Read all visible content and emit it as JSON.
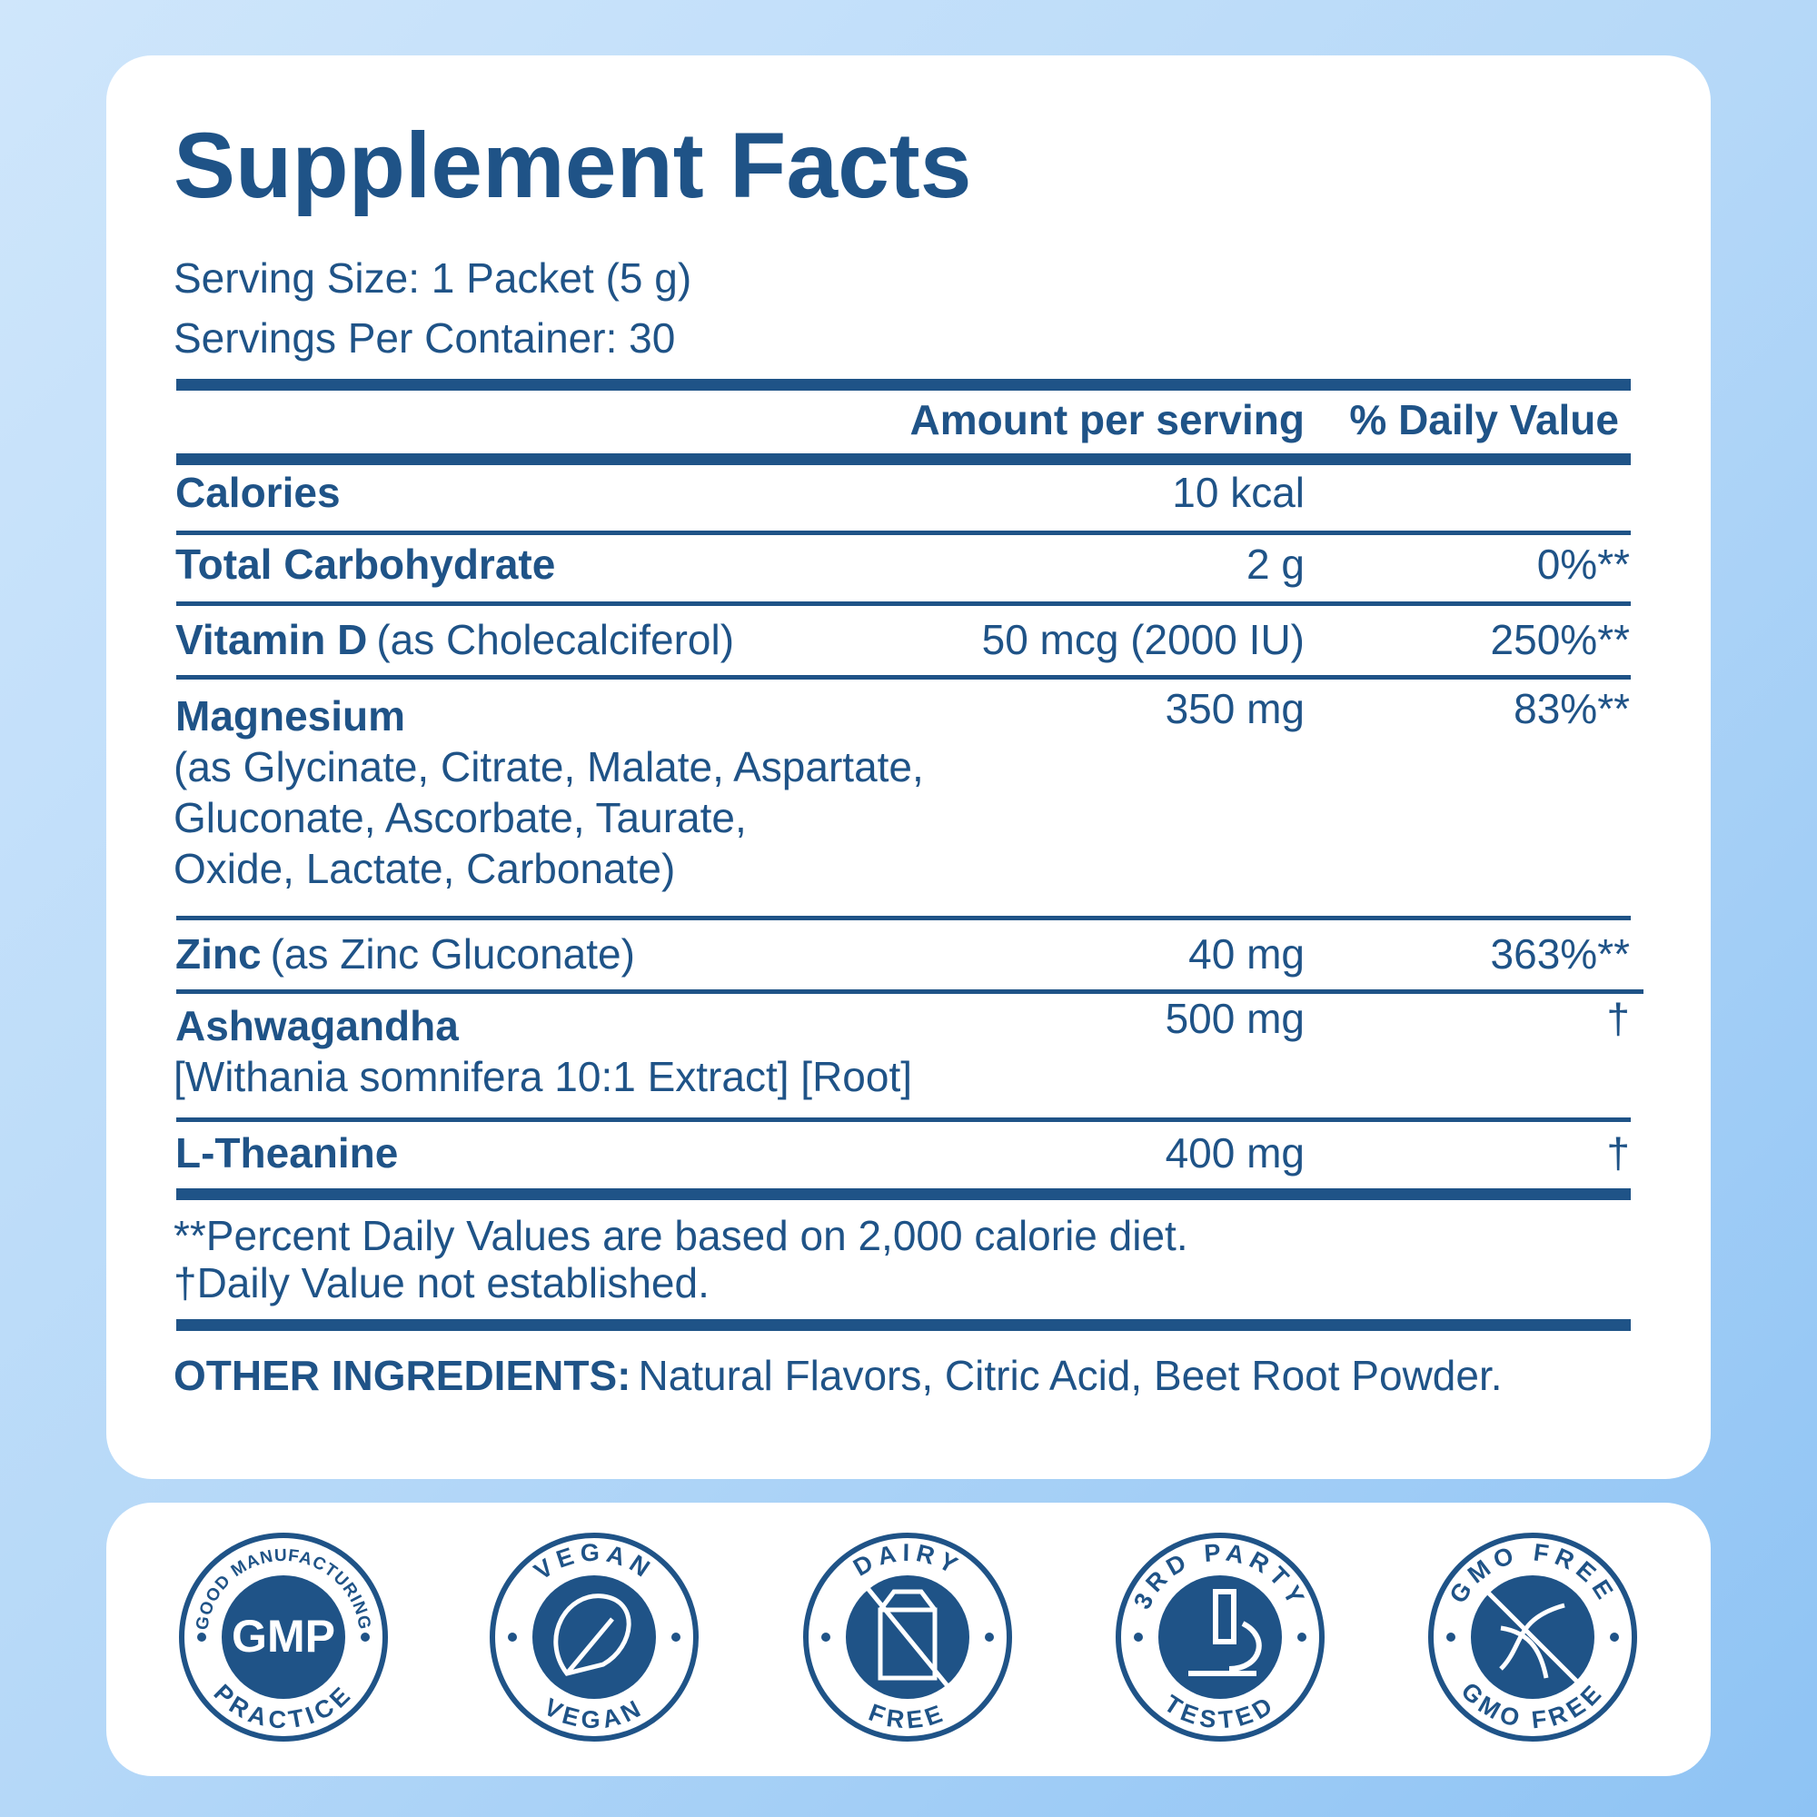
{
  "header": {
    "title": "Supplement Facts",
    "serving_size": "Serving Size: 1 Packet (5 g)",
    "servings_per_container": "Servings Per Container: 30"
  },
  "table": {
    "columns": [
      "Amount per serving",
      "% Daily Value"
    ],
    "rows": [
      {
        "name": "Calories",
        "amount": "10 kcal"
      },
      {
        "name": "Total Carbohydrate",
        "amount": "2 g",
        "daily_value": "0%**"
      },
      {
        "name": "Vitamin D",
        "detail": "(as Cholecalciferol)",
        "amount": "50 mcg (2000 IU)",
        "daily_value": "250%**"
      },
      {
        "name": "Magnesium",
        "detail_lines": [
          "(as Glycinate, Citrate, Malate, Aspartate,",
          "Gluconate, Ascorbate, Taurate,",
          "Oxide, Lactate, Carbonate)"
        ],
        "amount": "350 mg",
        "daily_value": "83%**"
      },
      {
        "name": "Zinc",
        "detail": "(as Zinc Gluconate)",
        "amount": "40 mg",
        "daily_value": "363%**"
      },
      {
        "name": "Ashwagandha",
        "detail_lines": [
          "[Withania somnifera 10:1 Extract] [Root]"
        ],
        "amount": "500 mg",
        "daily_value": "†"
      },
      {
        "name": "L-Theanine",
        "amount": "400 mg",
        "daily_value": "†"
      }
    ]
  },
  "footnotes": [
    "**Percent Daily Values are based on 2,000 calorie diet.",
    "†Daily Value not established."
  ],
  "other_ingredients": {
    "label": "OTHER INGREDIENTS:",
    "text": "Natural Flavors, Citric Acid, Beet Root Powder."
  },
  "badges": [
    {
      "top": "GOOD MANUFACTURING",
      "center": "GMP",
      "bottom": "PRACTICE"
    },
    {
      "top": "VEGAN",
      "bottom": "VEGAN"
    },
    {
      "top": "DAIRY",
      "bottom": "FREE"
    },
    {
      "top": "3RD PARTY",
      "bottom": "TESTED"
    },
    {
      "top": "GMO FREE",
      "bottom": "GMO FREE"
    }
  ]
}
